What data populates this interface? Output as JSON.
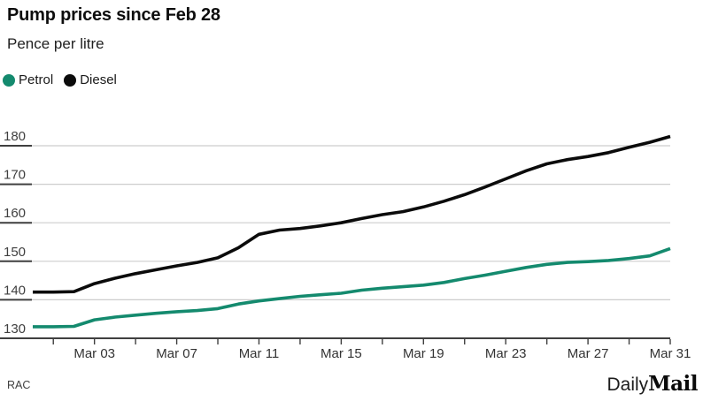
{
  "chart_data": {
    "type": "line",
    "title": "Pump prices since Feb 28",
    "ylabel": "Pence per litre",
    "source": "RAC",
    "grid": "horizontal",
    "legend_position": "top-left",
    "ylim": [
      130,
      185
    ],
    "yticks": [
      130,
      140,
      150,
      160,
      170,
      180
    ],
    "x": [
      "Feb 28",
      "Mar 01",
      "Mar 02",
      "Mar 03",
      "Mar 04",
      "Mar 05",
      "Mar 06",
      "Mar 07",
      "Mar 08",
      "Mar 09",
      "Mar 10",
      "Mar 11",
      "Mar 12",
      "Mar 13",
      "Mar 14",
      "Mar 15",
      "Mar 16",
      "Mar 17",
      "Mar 18",
      "Mar 19",
      "Mar 20",
      "Mar 21",
      "Mar 22",
      "Mar 23",
      "Mar 24",
      "Mar 25",
      "Mar 26",
      "Mar 27",
      "Mar 28",
      "Mar 29",
      "Mar 30",
      "Mar 31"
    ],
    "xticks": [
      {
        "index": 3,
        "label": "Mar 03"
      },
      {
        "index": 7,
        "label": "Mar 07"
      },
      {
        "index": 11,
        "label": "Mar 11"
      },
      {
        "index": 15,
        "label": "Mar 15"
      },
      {
        "index": 19,
        "label": "Mar 19"
      },
      {
        "index": 23,
        "label": "Mar 23"
      },
      {
        "index": 27,
        "label": "Mar 27"
      },
      {
        "index": 31,
        "label": "Mar 31"
      }
    ],
    "minor_tick_every": 2,
    "series": [
      {
        "name": "Petrol",
        "color": "#148a6e",
        "values": [
          133.0,
          133.0,
          133.1,
          134.8,
          135.5,
          136.0,
          136.5,
          136.9,
          137.2,
          137.7,
          138.9,
          139.7,
          140.3,
          140.9,
          141.3,
          141.7,
          142.5,
          143.0,
          143.4,
          143.8,
          144.5,
          145.5,
          146.4,
          147.4,
          148.4,
          149.2,
          149.7,
          149.9,
          150.2,
          150.7,
          151.4,
          153.3
        ]
      },
      {
        "name": "Diesel",
        "color": "#0b0b0b",
        "values": [
          142.0,
          142.0,
          142.1,
          144.2,
          145.6,
          146.8,
          147.8,
          148.8,
          149.7,
          150.9,
          153.5,
          157.0,
          158.1,
          158.5,
          159.2,
          160.0,
          161.1,
          162.1,
          162.9,
          164.1,
          165.6,
          167.3,
          169.3,
          171.4,
          173.5,
          175.3,
          176.4,
          177.2,
          178.2,
          179.6,
          180.9,
          182.4
        ]
      }
    ]
  },
  "footer": {
    "brand_light": "Daily",
    "brand_bold": "Mail"
  }
}
